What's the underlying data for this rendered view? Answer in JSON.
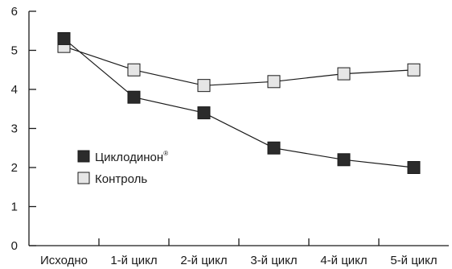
{
  "chart_data": {
    "type": "line",
    "categories": [
      "Исходно",
      "1-й цикл",
      "2-й цикл",
      "3-й цикл",
      "4-й цикл",
      "5-й цикл"
    ],
    "ylim": [
      0,
      6
    ],
    "yticks": [
      "0",
      "1",
      "2",
      "3",
      "4",
      "5",
      "6"
    ],
    "grid": false,
    "legend_position": "center-left",
    "series": [
      {
        "name": "Циклодинон",
        "name_mark": "®",
        "marker": "filled-square",
        "color": "#2b2b2b",
        "values": [
          5.3,
          3.8,
          3.4,
          2.5,
          2.2,
          2.0
        ]
      },
      {
        "name": "Контроль",
        "marker": "open-square",
        "color": "#e6e6e6",
        "values": [
          5.1,
          4.5,
          4.1,
          4.2,
          4.4,
          4.5
        ]
      }
    ]
  }
}
